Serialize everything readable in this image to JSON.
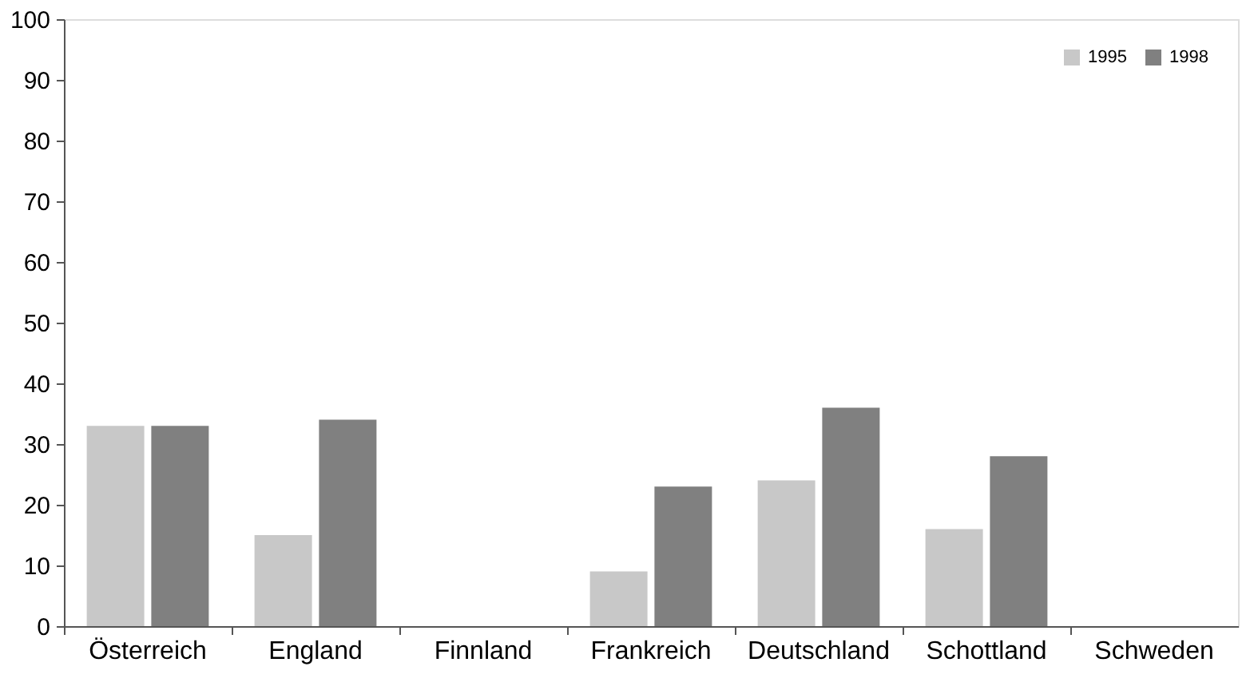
{
  "chart_data": {
    "type": "bar",
    "categories": [
      "Österreich",
      "England",
      "Finnland",
      "Frankreich",
      "Deutschland",
      "Schottland",
      "Schweden"
    ],
    "series": [
      {
        "name": "1995",
        "color": "#c8c8c8",
        "values": [
          33,
          15,
          0,
          9,
          24,
          16,
          0
        ]
      },
      {
        "name": "1998",
        "color": "#808080",
        "values": [
          33,
          34,
          0,
          23,
          36,
          28,
          0
        ]
      }
    ],
    "ylim": [
      0,
      100
    ],
    "yticks": [
      0,
      10,
      20,
      30,
      40,
      50,
      60,
      70,
      80,
      90,
      100
    ],
    "grid": false,
    "legend": "top right"
  }
}
